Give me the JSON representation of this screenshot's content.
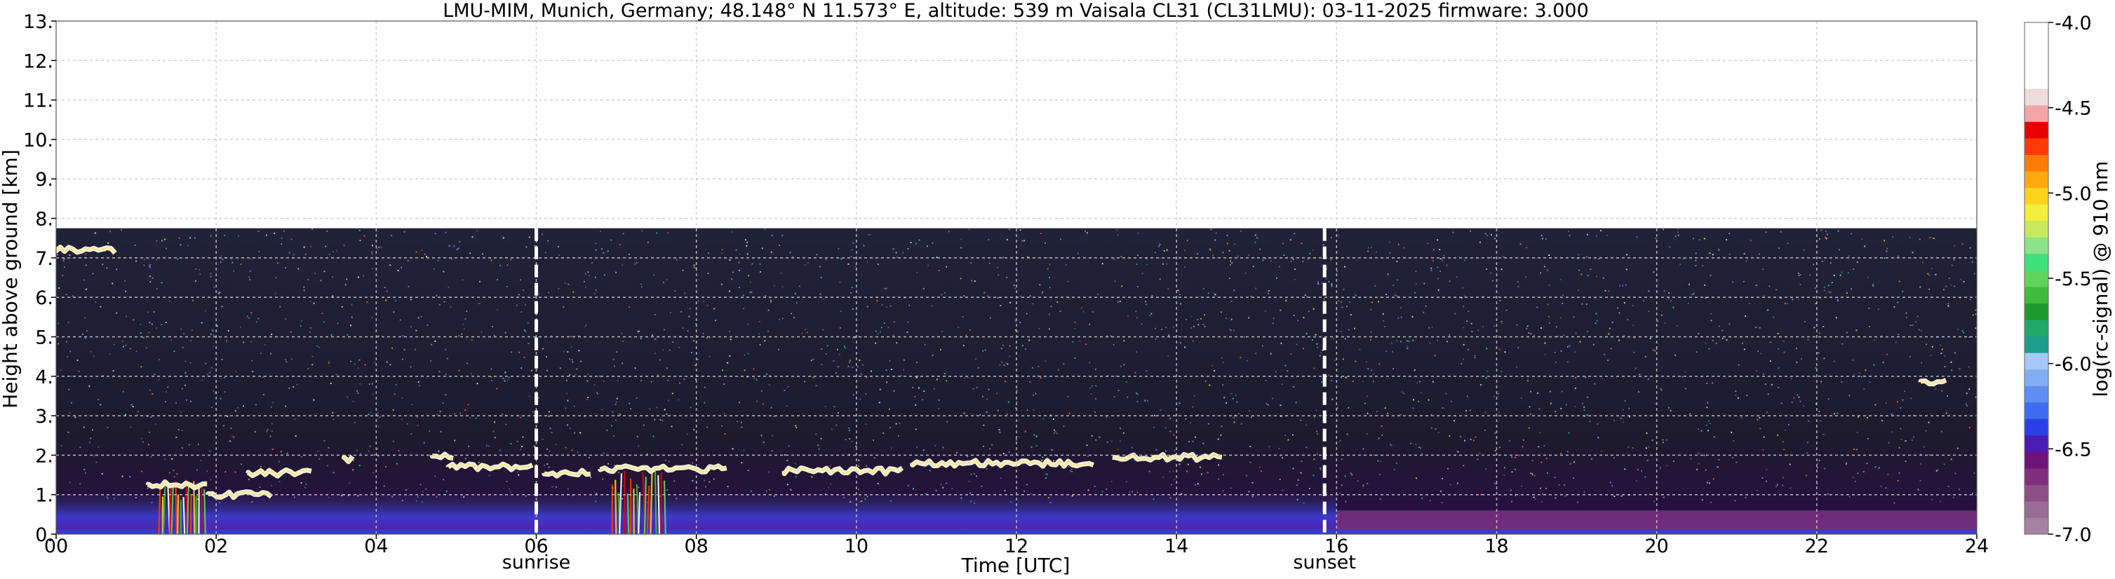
{
  "chart_data": {
    "type": "heatmap",
    "title": "LMU-MIM, Munich, Germany; 48.148° N 11.573° E, altitude: 539 m    Vaisala CL31 (CL31LMU): 03-11-2025    firmware: 3.000",
    "xlabel": "Time [UTC]",
    "ylabel": "Height above ground [km]",
    "xlim": [
      0,
      24
    ],
    "ylim": [
      0,
      13
    ],
    "x_ticks": [
      0,
      2,
      4,
      6,
      8,
      10,
      12,
      14,
      16,
      18,
      20,
      22,
      24
    ],
    "x_tick_labels": [
      "00",
      "02",
      "04",
      "06",
      "08",
      "10",
      "12",
      "14",
      "16",
      "18",
      "20",
      "22",
      "24"
    ],
    "y_ticks": [
      0,
      1,
      2,
      3,
      4,
      5,
      6,
      7,
      8,
      9,
      10,
      11,
      12,
      13
    ],
    "y_tick_labels": [
      "0.",
      "1.",
      "2.",
      "3.",
      "4.",
      "5.",
      "6.",
      "7.",
      "8.",
      "9.",
      "10.",
      "11.",
      "12.",
      "13."
    ],
    "grid": true,
    "markers": [
      {
        "x": 6.0,
        "label": "sunrise"
      },
      {
        "x": 15.85,
        "label": "sunset"
      }
    ],
    "signal_top_km": 7.75,
    "colorbar": {
      "label": "log(rc-signal) @ 910 nm",
      "range": [
        -7.0,
        -4.0
      ],
      "tick_values": [
        -7.0,
        -6.5,
        -6.0,
        -5.5,
        -5.0,
        -4.5,
        -4.0
      ],
      "tick_labels": [
        "-7.0",
        "-6.5",
        "-6.0",
        "-5.5",
        "-5.0",
        "-4.5",
        "-4.0"
      ],
      "colors": [
        "#a5829f",
        "#996d93",
        "#8c4f86",
        "#822d7e",
        "#6e137a",
        "#4a1cb4",
        "#2a40e6",
        "#3d6cf0",
        "#5e8ef4",
        "#82aef7",
        "#a6c8f7",
        "#1c9c8c",
        "#1fa86a",
        "#1c9a2e",
        "#3fbb3d",
        "#5fd45a",
        "#3ee07d",
        "#8be38a",
        "#c7ea5c",
        "#f2ee3c",
        "#ffd21d",
        "#ffa80f",
        "#ff7a0a",
        "#ff3a05",
        "#e80000",
        "#f4a6a6",
        "#eedcdc",
        "#ffffff",
        "#ffffff",
        "#ffffff",
        "#ffffff"
      ]
    },
    "cloud_layers": [
      {
        "x_start": 1.15,
        "x_end": 1.9,
        "height_km": 1.25
      },
      {
        "x_start": 1.9,
        "x_end": 2.7,
        "height_km": 1.0
      },
      {
        "x_start": 2.4,
        "x_end": 3.2,
        "height_km": 1.55
      },
      {
        "x_start": 3.6,
        "x_end": 3.75,
        "height_km": 1.9
      },
      {
        "x_start": 4.7,
        "x_end": 5.0,
        "height_km": 2.0
      },
      {
        "x_start": 4.9,
        "x_end": 6.0,
        "height_km": 1.7
      },
      {
        "x_start": 6.1,
        "x_end": 6.7,
        "height_km": 1.55
      },
      {
        "x_start": 6.8,
        "x_end": 8.4,
        "height_km": 1.65
      },
      {
        "x_start": 9.1,
        "x_end": 10.6,
        "height_km": 1.6
      },
      {
        "x_start": 10.7,
        "x_end": 13.0,
        "height_km": 1.8
      },
      {
        "x_start": 13.2,
        "x_end": 14.6,
        "height_km": 1.95
      },
      {
        "x_start": 0.0,
        "x_end": 0.75,
        "height_km": 7.2
      },
      {
        "x_start": 23.3,
        "x_end": 23.65,
        "height_km": 3.85
      }
    ],
    "precipitation_streaks": [
      {
        "x_start": 1.3,
        "x_end": 1.85,
        "top_km": 1.4
      },
      {
        "x_start": 6.95,
        "x_end": 7.6,
        "top_km": 1.7
      }
    ]
  }
}
